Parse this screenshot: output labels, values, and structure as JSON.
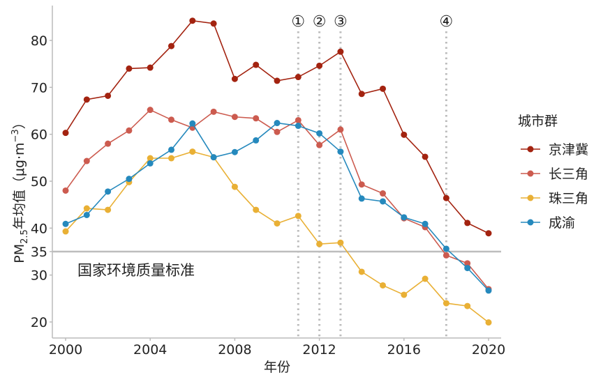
{
  "chart_data": {
    "type": "line",
    "title": "",
    "xlabel": "年份",
    "ylabel": {
      "pre": "PM",
      "sub": "2.5",
      "mid": "年均值（μg·m",
      "sup": "−3",
      "post": "）"
    },
    "xlim": [
      2000,
      2020
    ],
    "ylim": [
      16.5,
      87
    ],
    "xticks": [
      2000,
      2004,
      2008,
      2012,
      2016,
      2020
    ],
    "yticks": [
      20,
      30,
      35,
      40,
      50,
      60,
      70,
      80
    ],
    "x": [
      2000,
      2001,
      2002,
      2003,
      2004,
      2005,
      2006,
      2007,
      2008,
      2009,
      2010,
      2011,
      2012,
      2013,
      2014,
      2015,
      2016,
      2017,
      2018,
      2019,
      2020
    ],
    "legend_title": "城市群",
    "legend_position": "right",
    "series": [
      {
        "name": "京津冀",
        "color": "#a32310",
        "values": [
          60.3,
          67.4,
          68.2,
          74.0,
          74.2,
          78.8,
          84.2,
          83.6,
          71.8,
          74.8,
          71.4,
          72.2,
          74.6,
          77.6,
          68.6,
          69.7,
          59.9,
          55.2,
          46.4,
          41.1,
          38.9
        ]
      },
      {
        "name": "长三角",
        "color": "#cc5b4f",
        "values": [
          48.0,
          54.3,
          58.0,
          60.8,
          65.2,
          63.1,
          61.4,
          64.8,
          63.7,
          63.4,
          60.5,
          63.0,
          57.7,
          61.0,
          49.3,
          47.4,
          42.1,
          40.2,
          34.2,
          32.5,
          27.0
        ]
      },
      {
        "name": "珠三角",
        "color": "#e9b035",
        "values": [
          39.3,
          44.2,
          43.9,
          49.8,
          54.9,
          54.9,
          56.3,
          55.1,
          48.8,
          43.9,
          41.0,
          42.6,
          36.6,
          36.9,
          30.7,
          27.8,
          25.8,
          29.2,
          24.0,
          23.4,
          19.9
        ]
      },
      {
        "name": "成渝",
        "color": "#2589bd",
        "values": [
          40.9,
          42.8,
          47.8,
          50.5,
          53.8,
          56.7,
          62.3,
          55.1,
          56.2,
          58.7,
          62.4,
          61.8,
          60.2,
          56.3,
          46.3,
          45.7,
          42.3,
          40.9,
          35.6,
          31.5,
          26.7
        ]
      }
    ],
    "hline": {
      "value": 35,
      "label": "国家环境质量标准",
      "color": "#bdbdbd"
    },
    "vlines": [
      {
        "x": 2011,
        "label": "①"
      },
      {
        "x": 2012,
        "label": "②"
      },
      {
        "x": 2013,
        "label": "③"
      },
      {
        "x": 2018,
        "label": "④"
      }
    ],
    "grid": false
  }
}
